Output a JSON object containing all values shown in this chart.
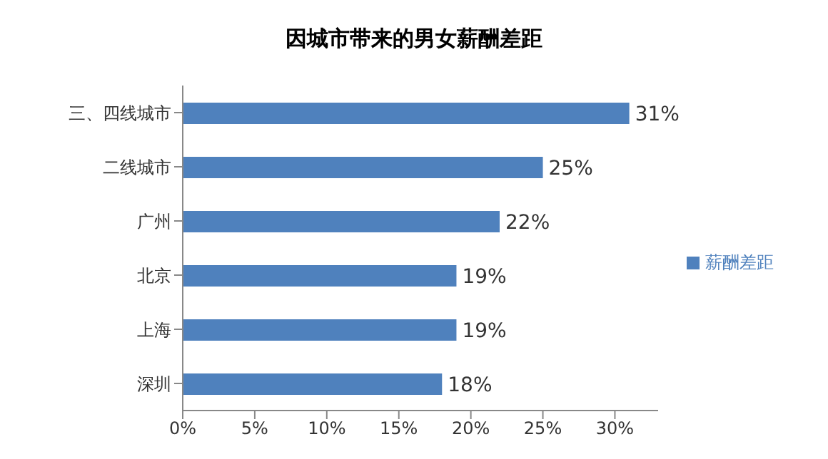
{
  "chart_data": {
    "type": "bar",
    "orientation": "horizontal",
    "title": "因城市带来的男女薪酬差距",
    "categories": [
      "三、四线城市",
      "二线城市",
      "广州",
      "北京",
      "上海",
      "深圳"
    ],
    "series": [
      {
        "name": "薪酬差距",
        "color": "#4f81bd",
        "values": [
          31,
          25,
          22,
          19,
          19,
          18
        ],
        "value_labels": [
          "31%",
          "25%",
          "22%",
          "19%",
          "19%",
          "18%"
        ]
      }
    ],
    "xlim": [
      0,
      33
    ],
    "xticks": [
      {
        "value": 0,
        "label": "0%"
      },
      {
        "value": 5,
        "label": "5%"
      },
      {
        "value": 10,
        "label": "10%"
      },
      {
        "value": 15,
        "label": "15%"
      },
      {
        "value": 20,
        "label": "20%"
      },
      {
        "value": 25,
        "label": "25%"
      },
      {
        "value": 30,
        "label": "30%"
      }
    ],
    "legend": "right",
    "grid": false
  }
}
